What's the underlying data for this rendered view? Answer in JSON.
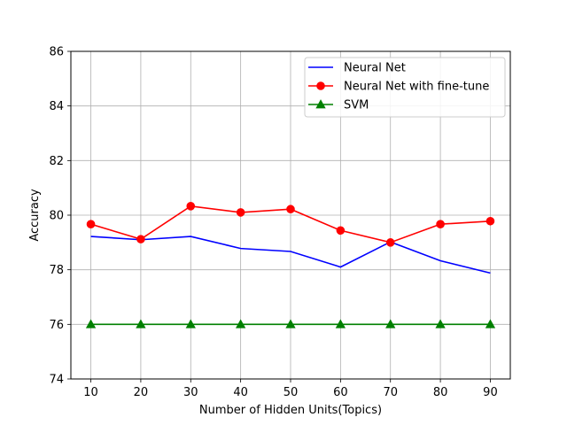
{
  "chart_data": {
    "type": "line",
    "title": "",
    "xlabel": "Number of Hidden Units(Topics)",
    "ylabel": "Accuracy",
    "x": [
      10,
      20,
      30,
      40,
      50,
      60,
      70,
      80,
      90
    ],
    "xlim": [
      6,
      94
    ],
    "ylim": [
      74,
      86
    ],
    "xticks": [
      10,
      20,
      30,
      40,
      50,
      60,
      70,
      80,
      90
    ],
    "yticks": [
      74,
      76,
      78,
      80,
      82,
      84,
      86
    ],
    "xtick_labels": [
      "10",
      "20",
      "30",
      "40",
      "50",
      "60",
      "70",
      "80",
      "90"
    ],
    "ytick_labels": [
      "74",
      "76",
      "78",
      "80",
      "82",
      "84",
      "86"
    ],
    "grid": true,
    "legend_position": "top-right",
    "series": [
      {
        "name": "Neural Net",
        "color": "#0000ff",
        "marker": "none",
        "values": [
          79.22,
          79.1,
          79.22,
          78.78,
          78.67,
          78.1,
          79.02,
          78.33,
          77.88
        ]
      },
      {
        "name": "Neural Net with fine-tune",
        "color": "#ff0000",
        "marker": "circle",
        "values": [
          79.67,
          79.12,
          80.33,
          80.1,
          80.22,
          79.44,
          79.0,
          79.67,
          79.78
        ]
      },
      {
        "name": "SVM",
        "color": "#008000",
        "marker": "triangle",
        "values": [
          76.0,
          76.0,
          76.0,
          76.0,
          76.0,
          76.0,
          76.0,
          76.0,
          76.0
        ]
      }
    ]
  }
}
